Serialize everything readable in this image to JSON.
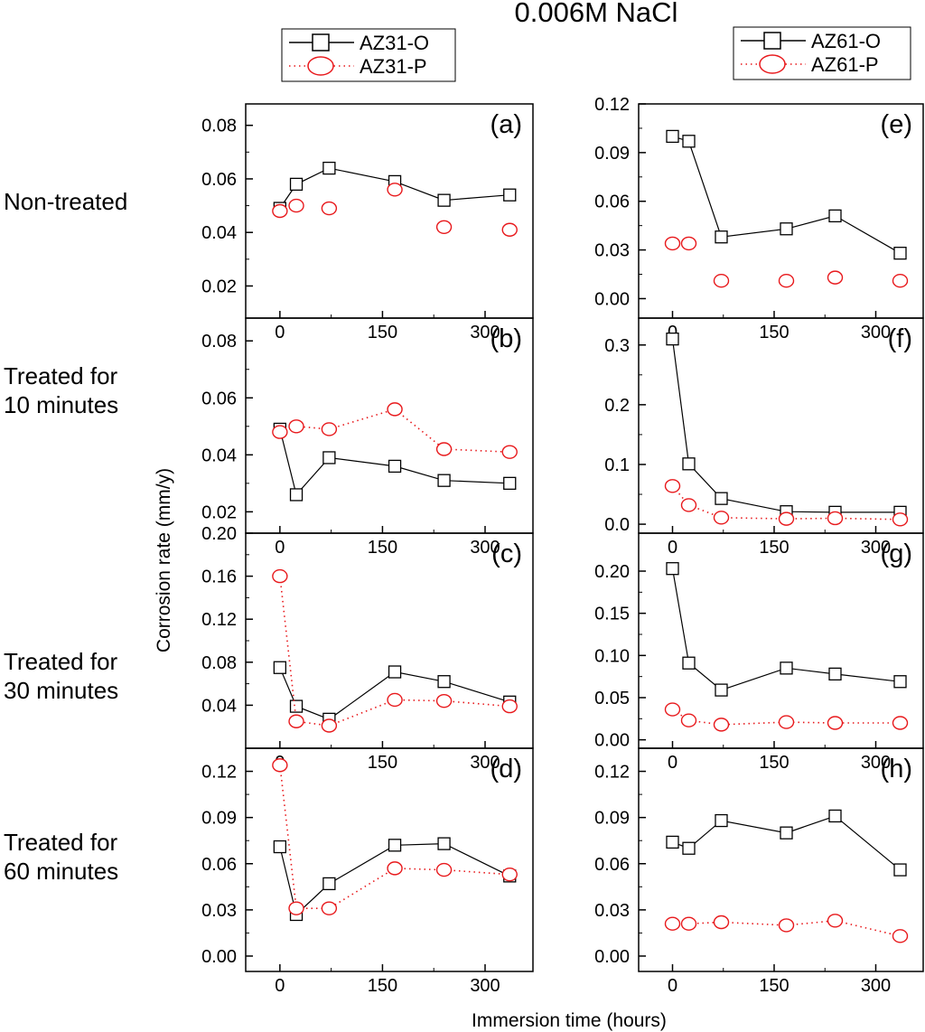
{
  "title": "0.006M NaCl",
  "xlabel": "Immersion time (hours)",
  "ylabel": "Corrosion rate (mm/y)",
  "row_labels": [
    [
      "Non-treated"
    ],
    [
      "Treated for",
      "10 minutes"
    ],
    [
      "Treated for",
      "30 minutes"
    ],
    [
      "Treated for",
      "60 minutes"
    ]
  ],
  "legends": {
    "left": [
      "AZ31-O",
      "AZ31-P"
    ],
    "right": [
      "AZ61-O",
      "AZ61-P"
    ]
  },
  "colors": {
    "O": "#000000",
    "P": "#e8191c"
  },
  "chart_data": [
    {
      "panel": "(a)",
      "type": "line",
      "xlim": [
        -50,
        370
      ],
      "ylim": [
        0.008,
        0.088
      ],
      "xticks": [
        0,
        150,
        300
      ],
      "yticks": [
        0.02,
        0.04,
        0.06,
        0.08
      ],
      "ydec": 2,
      "series": [
        {
          "name": "AZ31-O",
          "x": [
            0,
            24,
            72,
            168,
            240,
            336
          ],
          "y": [
            0.049,
            0.058,
            0.064,
            0.059,
            0.052,
            0.054
          ]
        },
        {
          "name": "AZ31-P",
          "x": [
            0,
            24,
            72,
            168,
            240,
            336
          ],
          "y": [
            0.048,
            0.05,
            0.049,
            0.056,
            0.042,
            0.041
          ],
          "style": "markers"
        }
      ]
    },
    {
      "panel": "(b)",
      "type": "line",
      "xlim": [
        -50,
        370
      ],
      "ylim": [
        0.0125,
        0.088
      ],
      "xticks": [
        0,
        150,
        300
      ],
      "yticks": [
        0.02,
        0.04,
        0.06,
        0.08
      ],
      "ydec": 2,
      "series": [
        {
          "name": "AZ31-O",
          "x": [
            0,
            24,
            72,
            168,
            240,
            336
          ],
          "y": [
            0.049,
            0.026,
            0.039,
            0.036,
            0.031,
            0.03
          ]
        },
        {
          "name": "AZ31-P",
          "x": [
            0,
            24,
            72,
            168,
            240,
            336
          ],
          "y": [
            0.048,
            0.05,
            0.049,
            0.056,
            0.042,
            0.041
          ]
        }
      ]
    },
    {
      "panel": "(c)",
      "type": "line",
      "xlim": [
        -50,
        370
      ],
      "ylim": [
        0.0,
        0.2
      ],
      "xticks": [
        0,
        150,
        300
      ],
      "yticks": [
        0.04,
        0.08,
        0.12,
        0.16,
        0.2
      ],
      "ydec": 2,
      "series": [
        {
          "name": "AZ31-O",
          "x": [
            0,
            24,
            72,
            168,
            240,
            336
          ],
          "y": [
            0.075,
            0.039,
            0.027,
            0.071,
            0.062,
            0.043
          ]
        },
        {
          "name": "AZ31-P",
          "x": [
            0,
            24,
            72,
            168,
            240,
            336
          ],
          "y": [
            0.16,
            0.025,
            0.021,
            0.045,
            0.044,
            0.039
          ]
        }
      ]
    },
    {
      "panel": "(d)",
      "type": "line",
      "xlim": [
        -50,
        370
      ],
      "ylim": [
        -0.01,
        0.135
      ],
      "xticks": [
        0,
        150,
        300
      ],
      "yticks": [
        0.0,
        0.03,
        0.06,
        0.09,
        0.12
      ],
      "ydec": 2,
      "series": [
        {
          "name": "AZ31-O",
          "x": [
            0,
            24,
            72,
            168,
            240,
            336
          ],
          "y": [
            0.071,
            0.027,
            0.047,
            0.072,
            0.073,
            0.052
          ]
        },
        {
          "name": "AZ31-P",
          "x": [
            0,
            24,
            72,
            168,
            240,
            336
          ],
          "y": [
            0.124,
            0.031,
            0.031,
            0.057,
            0.056,
            0.053
          ]
        }
      ]
    },
    {
      "panel": "(e)",
      "type": "line",
      "xlim": [
        -50,
        370
      ],
      "ylim": [
        -0.012,
        0.12
      ],
      "xticks": [
        0,
        150,
        300
      ],
      "yticks": [
        0.0,
        0.03,
        0.06,
        0.09,
        0.12
      ],
      "ydec": 2,
      "series": [
        {
          "name": "AZ61-O",
          "x": [
            0,
            24,
            72,
            168,
            240,
            336
          ],
          "y": [
            0.1,
            0.097,
            0.038,
            0.043,
            0.051,
            0.028
          ]
        },
        {
          "name": "AZ61-P",
          "x": [
            0,
            24,
            72,
            168,
            240,
            336
          ],
          "y": [
            0.034,
            0.034,
            0.011,
            0.011,
            0.013,
            0.011
          ],
          "style": "markers"
        }
      ]
    },
    {
      "panel": "(f)",
      "type": "line",
      "xlim": [
        -50,
        370
      ],
      "ylim": [
        -0.015,
        0.345
      ],
      "xticks": [
        0,
        150,
        300
      ],
      "yticks": [
        0.0,
        0.1,
        0.2,
        0.3
      ],
      "ydec": 1,
      "series": [
        {
          "name": "AZ61-O",
          "x": [
            0,
            24,
            72,
            168,
            240,
            336
          ],
          "y": [
            0.31,
            0.101,
            0.043,
            0.021,
            0.02,
            0.02
          ]
        },
        {
          "name": "AZ61-P",
          "x": [
            0,
            24,
            72,
            168,
            240,
            336
          ],
          "y": [
            0.064,
            0.032,
            0.011,
            0.009,
            0.01,
            0.008
          ]
        }
      ]
    },
    {
      "panel": "(g)",
      "type": "line",
      "xlim": [
        -50,
        370
      ],
      "ylim": [
        -0.01,
        0.245
      ],
      "xticks": [
        0,
        150,
        300
      ],
      "yticks": [
        0.0,
        0.05,
        0.1,
        0.15,
        0.2
      ],
      "ydec": 2,
      "series": [
        {
          "name": "AZ61-O",
          "x": [
            0,
            24,
            72,
            168,
            240,
            336
          ],
          "y": [
            0.203,
            0.091,
            0.059,
            0.085,
            0.078,
            0.069
          ]
        },
        {
          "name": "AZ61-P",
          "x": [
            0,
            24,
            72,
            168,
            240,
            336
          ],
          "y": [
            0.036,
            0.023,
            0.018,
            0.021,
            0.02,
            0.02
          ]
        }
      ]
    },
    {
      "panel": "(h)",
      "type": "line",
      "xlim": [
        -50,
        370
      ],
      "ylim": [
        -0.01,
        0.135
      ],
      "xticks": [
        0,
        150,
        300
      ],
      "yticks": [
        0.0,
        0.03,
        0.06,
        0.09,
        0.12
      ],
      "ydec": 2,
      "series": [
        {
          "name": "AZ61-O",
          "x": [
            0,
            24,
            72,
            168,
            240,
            336
          ],
          "y": [
            0.074,
            0.07,
            0.088,
            0.08,
            0.091,
            0.056
          ]
        },
        {
          "name": "AZ61-P",
          "x": [
            0,
            24,
            72,
            168,
            240,
            336
          ],
          "y": [
            0.021,
            0.021,
            0.022,
            0.02,
            0.023,
            0.013
          ]
        }
      ]
    }
  ]
}
